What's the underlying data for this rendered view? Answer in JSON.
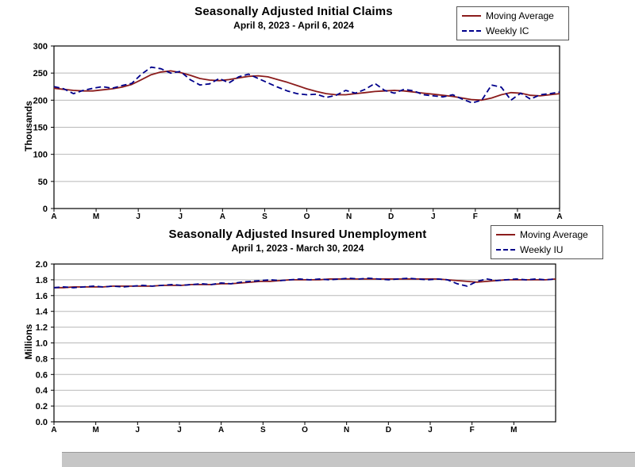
{
  "page": {
    "background": "#ffffff"
  },
  "colors": {
    "moving_average": "#8b1c1c",
    "weekly": "#00008b",
    "grid": "#b8b8b8"
  },
  "chart_data": [
    {
      "type": "line",
      "title": "Seasonally Adjusted Initial Claims",
      "subtitle": "April 8, 2023 - April 6, 2024",
      "ylabel": "Thousands",
      "xlabel": "",
      "ylim": [
        0,
        300
      ],
      "yticks": [
        "0",
        "50",
        "100",
        "150",
        "200",
        "250",
        "300"
      ],
      "xticklabels": [
        "A",
        "M",
        "J",
        "J",
        "A",
        "S",
        "O",
        "N",
        "D",
        "J",
        "F",
        "M",
        "A"
      ],
      "xslots": 13,
      "grid": true,
      "legend_position": "top-right",
      "series": [
        {
          "name": "Moving Average",
          "color": "#8b1c1c",
          "style": "solid",
          "values": [
            222,
            220,
            218,
            217,
            217,
            219,
            221,
            224,
            229,
            238,
            247,
            252,
            254,
            251,
            246,
            240,
            237,
            236,
            238,
            241,
            244,
            245,
            243,
            238,
            233,
            227,
            221,
            216,
            212,
            210,
            210,
            212,
            214,
            216,
            217,
            218,
            217,
            215,
            213,
            211,
            209,
            207,
            204,
            201,
            200,
            204,
            210,
            214,
            213,
            209,
            208,
            210,
            212
          ]
        },
        {
          "name": "Weekly IC",
          "color": "#00008b",
          "style": "dashed",
          "values": [
            225,
            221,
            212,
            218,
            222,
            225,
            222,
            227,
            231,
            248,
            261,
            258,
            250,
            253,
            238,
            228,
            230,
            240,
            232,
            243,
            248,
            240,
            232,
            224,
            217,
            212,
            210,
            211,
            205,
            209,
            218,
            213,
            220,
            231,
            218,
            213,
            220,
            217,
            210,
            208,
            206,
            210,
            202,
            195,
            200,
            228,
            224,
            200,
            213,
            202,
            210,
            212,
            215
          ]
        }
      ]
    },
    {
      "type": "line",
      "title": "Seasonally Adjusted Insured Unemployment",
      "subtitle": "April 1, 2023 - March 30, 2024",
      "ylabel": "Millions",
      "xlabel": "",
      "ylim": [
        0,
        2.0
      ],
      "yticks": [
        "0.0",
        "0.2",
        "0.4",
        "0.6",
        "0.8",
        "1.0",
        "1.2",
        "1.4",
        "1.6",
        "1.8",
        "2.0"
      ],
      "xticklabels": [
        "A",
        "M",
        "J",
        "J",
        "A",
        "S",
        "O",
        "N",
        "D",
        "J",
        "F",
        "M"
      ],
      "xslots": 13,
      "grid": true,
      "legend_position": "top-right",
      "series": [
        {
          "name": "Moving Average",
          "color": "#8b1c1c",
          "style": "solid",
          "values": [
            1.7,
            1.7,
            1.71,
            1.71,
            1.71,
            1.71,
            1.72,
            1.72,
            1.72,
            1.72,
            1.72,
            1.73,
            1.73,
            1.73,
            1.74,
            1.74,
            1.74,
            1.75,
            1.75,
            1.76,
            1.77,
            1.78,
            1.78,
            1.79,
            1.8,
            1.8,
            1.8,
            1.8,
            1.81,
            1.81,
            1.81,
            1.81,
            1.81,
            1.81,
            1.81,
            1.81,
            1.81,
            1.81,
            1.81,
            1.81,
            1.8,
            1.79,
            1.78,
            1.77,
            1.78,
            1.79,
            1.8,
            1.8,
            1.8,
            1.8,
            1.8,
            1.81
          ]
        },
        {
          "name": "Weekly IU",
          "color": "#00008b",
          "style": "dashed",
          "values": [
            1.7,
            1.71,
            1.7,
            1.71,
            1.72,
            1.71,
            1.72,
            1.71,
            1.72,
            1.73,
            1.72,
            1.73,
            1.74,
            1.73,
            1.74,
            1.75,
            1.74,
            1.76,
            1.75,
            1.77,
            1.78,
            1.79,
            1.8,
            1.79,
            1.8,
            1.81,
            1.8,
            1.81,
            1.8,
            1.81,
            1.82,
            1.81,
            1.82,
            1.81,
            1.8,
            1.81,
            1.82,
            1.81,
            1.8,
            1.81,
            1.8,
            1.75,
            1.72,
            1.78,
            1.81,
            1.79,
            1.8,
            1.81,
            1.8,
            1.81,
            1.8,
            1.81
          ]
        }
      ]
    }
  ]
}
